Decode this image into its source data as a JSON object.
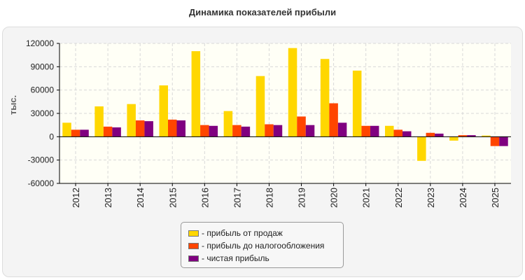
{
  "chart_data": {
    "type": "bar",
    "title": "Динамика показателей прибыли",
    "ylabel": "тыс.",
    "xlabel": "",
    "ylim": [
      -60000,
      120000
    ],
    "yticks": [
      120000,
      90000,
      60000,
      30000,
      0,
      -30000,
      -60000
    ],
    "grid": true,
    "legend_position": "bottom",
    "categories": [
      "2012",
      "2013",
      "2014",
      "2015",
      "2016",
      "2017",
      "2018",
      "2019",
      "2020",
      "2021",
      "2022",
      "2023",
      "2024",
      "2025"
    ],
    "series": [
      {
        "name": "- прибыль от продаж",
        "color": "#FFD700",
        "values": [
          18000,
          39000,
          42000,
          66000,
          110000,
          33000,
          78000,
          114000,
          100000,
          85000,
          14000,
          -31000,
          -5000,
          1500
        ]
      },
      {
        "name": "- прибыль до налогообложения",
        "color": "#FF4500",
        "values": [
          9000,
          13000,
          21000,
          22000,
          15000,
          15000,
          16000,
          26000,
          43000,
          14000,
          9000,
          5000,
          2000,
          -12000
        ]
      },
      {
        "name": "- чистая прибыль",
        "color": "#800080",
        "values": [
          9000,
          12000,
          20000,
          21000,
          14000,
          13000,
          15000,
          15000,
          18000,
          14000,
          7000,
          4000,
          2000,
          -12000
        ]
      }
    ]
  }
}
